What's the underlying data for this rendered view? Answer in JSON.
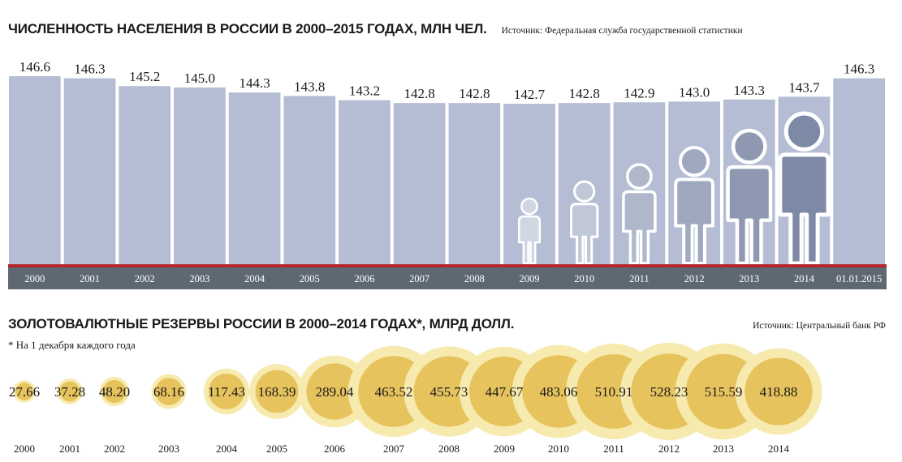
{
  "population": {
    "title": "ЧИСЛЕННОСТЬ НАСЕЛЕНИЯ В РОССИИ В 2000–2015  ГОДАХ, МЛН ЧЕЛ.",
    "source": "Источник: Федеральная служба государственной статистики"
  },
  "reserves": {
    "title": "ЗОЛОТОВАЛЮТНЫЕ РЕЗЕРВЫ РОССИИ В 2000–2014 ГОДАХ*, МЛРД ДОЛЛ.",
    "source": "Источник: Центральный банк РФ",
    "footnote": "* На 1 декабря каждого года"
  },
  "colors": {
    "bar": "#b4bdd3",
    "axis_band": "#5e6873",
    "axis_line": "#b5262a",
    "person_light": "#d1d6e3",
    "person_dark": "#7d89a5",
    "circle_outer": "#f7eaaf",
    "circle_inner": "#e6c35c"
  },
  "chart_data": [
    {
      "type": "bar",
      "categories": [
        "2000",
        "2001",
        "2002",
        "2003",
        "2004",
        "2005",
        "2006",
        "2007",
        "2008",
        "2009",
        "2010",
        "2011",
        "2012",
        "2013",
        "2014",
        "01.01.2015"
      ],
      "values": [
        146.6,
        146.3,
        145.2,
        145.0,
        144.3,
        143.8,
        143.2,
        142.8,
        142.8,
        142.7,
        142.8,
        142.9,
        143.0,
        143.3,
        143.7,
        146.3
      ],
      "labels": [
        "146.6",
        "146.3",
        "145.2",
        "145.0",
        "144.3",
        "143.8",
        "143.2",
        "142.8",
        "142.8",
        "142.7",
        "142.8",
        "142.9",
        "143.0",
        "143.3",
        "143.7",
        "146.3"
      ]
    },
    {
      "type": "bubble",
      "categories": [
        "2000",
        "2001",
        "2002",
        "2003",
        "2004",
        "2005",
        "2006",
        "2007",
        "2008",
        "2009",
        "2010",
        "2011",
        "2012",
        "2013",
        "2014"
      ],
      "values": [
        27.66,
        37.28,
        48.2,
        68.16,
        117.43,
        168.39,
        289.04,
        463.52,
        455.73,
        447.67,
        483.06,
        510.91,
        528.23,
        515.59,
        418.88
      ],
      "labels": [
        "27.66",
        "37.28",
        "48.20",
        "68.16",
        "117.43",
        "168.39",
        "289.04",
        "463.52",
        "455.73",
        "447.67",
        "483.06",
        "510.91",
        "528.23",
        "515.59",
        "418.88"
      ]
    }
  ]
}
